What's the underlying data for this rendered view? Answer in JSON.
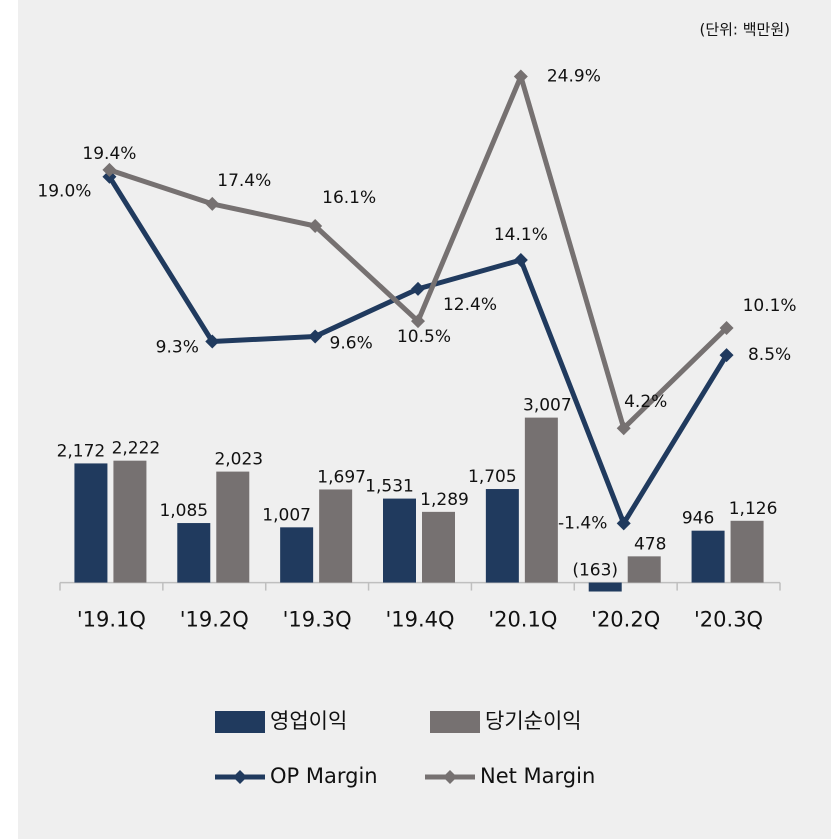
{
  "chart_data": {
    "type": "bar_line",
    "unit_note": "(단위: 백만원)",
    "categories": [
      "'19.1Q",
      "'19.2Q",
      "'19.3Q",
      "'19.4Q",
      "'20.1Q",
      "'20.2Q",
      "'20.3Q"
    ],
    "ylim": [
      -500,
      10000
    ],
    "y2lim": [
      -6.5,
      27.4
    ],
    "series": [
      {
        "name": "영업이익",
        "type": "bar",
        "color": "#203a5e",
        "values": [
          2172,
          1085,
          1007,
          1531,
          1705,
          -163,
          946
        ],
        "value_labels": [
          "2,172",
          "1,085",
          "1,007",
          "1,531",
          "1,705",
          "(163)",
          "946"
        ]
      },
      {
        "name": "당기순이익",
        "type": "bar",
        "color": "#767171",
        "values": [
          2222,
          2023,
          1697,
          1289,
          3007,
          478,
          1126
        ],
        "value_labels": [
          "2,222",
          "2,023",
          "1,697",
          "1,289",
          "3,007",
          "478",
          "1,126"
        ]
      },
      {
        "name": "OP Margin",
        "type": "line",
        "axis": "y2",
        "color": "#203a5e",
        "values": [
          19.0,
          9.3,
          9.6,
          12.4,
          14.1,
          -1.4,
          8.5
        ],
        "value_labels": [
          "19.0%",
          "9.3%",
          "9.6%",
          "12.4%",
          "14.1%",
          "-1.4%",
          "8.5%"
        ]
      },
      {
        "name": "Net Margin",
        "type": "line",
        "axis": "y2",
        "color": "#767171",
        "values": [
          19.4,
          17.4,
          16.1,
          10.5,
          24.9,
          4.2,
          10.1
        ],
        "value_labels": [
          "19.4%",
          "17.4%",
          "16.1%",
          "10.5%",
          "24.9%",
          "4.2%",
          "10.1%"
        ]
      }
    ]
  }
}
